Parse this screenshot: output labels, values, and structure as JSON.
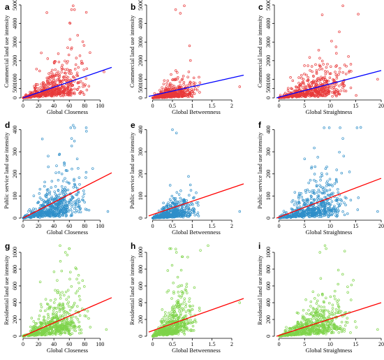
{
  "colors": {
    "commercial_points": "#e8393a",
    "public_points": "#2f8fc9",
    "residential_points": "#7ed34a",
    "fit_blue": "#0000ff",
    "fit_red": "#ff0000"
  },
  "chart_data": [
    {
      "type": "scatter",
      "panel": "a",
      "xlabel": "Global Closeness",
      "ylabel": "Commercial land use intensity",
      "xlim": [
        0,
        115
      ],
      "ylim": [
        0,
        5000
      ],
      "xticks": [
        0,
        20,
        40,
        60,
        80,
        100
      ],
      "yticks": [
        0,
        500,
        1000,
        2000,
        3000,
        4000,
        5000
      ],
      "fit": {
        "x": [
          0,
          115
        ],
        "y": [
          0,
          1640
        ]
      },
      "point_color": "commercial_points",
      "fit_color": "fit_blue",
      "points": {
        "seed": 11,
        "n": 520,
        "x_mean": 38,
        "x_sd": 20,
        "slope": 14.2,
        "noise": 0.9,
        "max_x": 110,
        "max_y": 5000,
        "outliers": [
          [
            65,
            4950
          ],
          [
            82,
            4600
          ],
          [
            105,
            1400
          ]
        ]
      }
    },
    {
      "type": "scatter",
      "panel": "b",
      "xlabel": "Global Betweenness",
      "ylabel": "Commercial land use intensity",
      "xlim": [
        -0.1,
        2.3
      ],
      "ylim": [
        0,
        5000
      ],
      "xticks": [
        0,
        0.5,
        1,
        1.5,
        2
      ],
      "yticks": [
        0,
        500,
        1000,
        2000,
        3000,
        4000,
        5000
      ],
      "fit": {
        "x": [
          -0.1,
          2.3
        ],
        "y": [
          80,
          1220
        ]
      },
      "point_color": "commercial_points",
      "fit_color": "fit_blue",
      "points": {
        "seed": 23,
        "n": 520,
        "x_mean": 0.45,
        "x_sd": 0.3,
        "slope": 500,
        "noise": 1.1,
        "max_x": 2.2,
        "max_y": 5000,
        "outliers": [
          [
            0.8,
            4950
          ],
          [
            0.7,
            4550
          ],
          [
            2.2,
            600
          ]
        ]
      }
    },
    {
      "type": "scatter",
      "panel": "c",
      "xlabel": "Global Straightness",
      "ylabel": "Commercial land use intensity",
      "xlim": [
        -0.5,
        20
      ],
      "ylim": [
        0,
        5000
      ],
      "xticks": [
        0,
        5,
        10,
        15,
        20
      ],
      "yticks": [
        0,
        500,
        1000,
        2000,
        3000,
        4000,
        5000
      ],
      "fit": {
        "x": [
          -0.5,
          20
        ],
        "y": [
          0,
          1470
        ]
      },
      "point_color": "commercial_points",
      "fit_color": "fit_blue",
      "points": {
        "seed": 37,
        "n": 520,
        "x_mean": 6.5,
        "x_sd": 3.5,
        "slope": 75,
        "noise": 0.9,
        "max_x": 19.5,
        "max_y": 5000,
        "outliers": [
          [
            12.5,
            4950
          ],
          [
            15.5,
            4500
          ],
          [
            19.3,
            1000
          ]
        ]
      }
    },
    {
      "type": "scatter",
      "panel": "d",
      "xlabel": "Global Closeness",
      "ylabel": "Public service land use intensity",
      "xlim": [
        0,
        115
      ],
      "ylim": [
        0,
        430
      ],
      "xticks": [
        0,
        20,
        40,
        60,
        80,
        100
      ],
      "yticks": [
        0,
        100,
        200,
        300,
        400
      ],
      "fit": {
        "x": [
          0,
          115
        ],
        "y": [
          0,
          205
        ]
      },
      "point_color": "public_points",
      "fit_color": "fit_red",
      "points": {
        "seed": 41,
        "n": 560,
        "x_mean": 38,
        "x_sd": 20,
        "slope": 1.4,
        "noise": 0.9,
        "max_x": 110,
        "max_y": 430,
        "outliers": [
          [
            65,
            420
          ],
          [
            63,
            360
          ],
          [
            110,
            30
          ]
        ]
      }
    },
    {
      "type": "scatter",
      "panel": "e",
      "xlabel": "Global Betweenness",
      "ylabel": "Public service land use intensity",
      "xlim": [
        -0.1,
        2.3
      ],
      "ylim": [
        0,
        430
      ],
      "xticks": [
        0,
        0.5,
        1,
        1.5,
        2
      ],
      "yticks": [
        0,
        100,
        200,
        300,
        400
      ],
      "fit": {
        "x": [
          -0.1,
          2.3
        ],
        "y": [
          10,
          155
        ]
      },
      "point_color": "public_points",
      "fit_color": "fit_red",
      "points": {
        "seed": 53,
        "n": 560,
        "x_mean": 0.45,
        "x_sd": 0.3,
        "slope": 55,
        "noise": 1.0,
        "max_x": 2.2,
        "max_y": 430,
        "outliers": [
          [
            0.5,
            400
          ],
          [
            0.6,
            385
          ],
          [
            2.2,
            30
          ]
        ]
      }
    },
    {
      "type": "scatter",
      "panel": "f",
      "xlabel": "Global Straightness",
      "ylabel": "Public service land use intensity",
      "xlim": [
        -0.5,
        20
      ],
      "ylim": [
        0,
        430
      ],
      "xticks": [
        0,
        5,
        10,
        15,
        20
      ],
      "yticks": [
        0,
        100,
        200,
        300,
        400
      ],
      "fit": {
        "x": [
          -0.5,
          20
        ],
        "y": [
          0,
          180
        ]
      },
      "point_color": "public_points",
      "fit_color": "fit_red",
      "points": {
        "seed": 67,
        "n": 560,
        "x_mean": 6.5,
        "x_sd": 3.5,
        "slope": 7.5,
        "noise": 0.9,
        "max_x": 19.5,
        "max_y": 430,
        "outliers": [
          [
            16,
            410
          ],
          [
            12.5,
            360
          ],
          [
            19.3,
            30
          ]
        ]
      }
    },
    {
      "type": "scatter",
      "panel": "g",
      "xlabel": "Global Closeness",
      "ylabel": "Residential land use intensity",
      "xlim": [
        0,
        115
      ],
      "ylim": [
        0,
        1100
      ],
      "xticks": [
        0,
        20,
        40,
        60,
        80,
        100
      ],
      "yticks": [
        0,
        200,
        400,
        600,
        800,
        1000
      ],
      "fit": {
        "x": [
          0,
          115
        ],
        "y": [
          0,
          460
        ]
      },
      "point_color": "residential_points",
      "fit_color": "fit_red",
      "points": {
        "seed": 71,
        "n": 580,
        "x_mean": 38,
        "x_sd": 20,
        "slope": 3.8,
        "noise": 0.85,
        "max_x": 110,
        "max_y": 1100,
        "outliers": [
          [
            48,
            1080
          ],
          [
            55,
            1000
          ],
          [
            108,
            80
          ]
        ]
      }
    },
    {
      "type": "scatter",
      "panel": "h",
      "xlabel": "Global Betweenness",
      "ylabel": "Residential land use intensity",
      "xlim": [
        -0.1,
        2.3
      ],
      "ylim": [
        0,
        1100
      ],
      "xticks": [
        0,
        0.5,
        1,
        1.5,
        2
      ],
      "yticks": [
        0,
        200,
        400,
        600,
        800,
        1000
      ],
      "fit": {
        "x": [
          -0.1,
          2.3
        ],
        "y": [
          50,
          450
        ]
      },
      "point_color": "residential_points",
      "fit_color": "fit_red",
      "points": {
        "seed": 83,
        "n": 580,
        "x_mean": 0.45,
        "x_sd": 0.3,
        "slope": 300,
        "noise": 0.9,
        "max_x": 2.2,
        "max_y": 1100,
        "outliers": [
          [
            1.4,
            1080
          ],
          [
            0.6,
            1000
          ],
          [
            2.2,
            400
          ]
        ]
      }
    },
    {
      "type": "scatter",
      "panel": "i",
      "xlabel": "Global Straightness",
      "ylabel": "Residential land use intensity",
      "xlim": [
        -0.5,
        20
      ],
      "ylim": [
        0,
        1100
      ],
      "xticks": [
        0,
        5,
        10,
        15,
        20
      ],
      "yticks": [
        0,
        200,
        400,
        600,
        800,
        1000
      ],
      "fit": {
        "x": [
          -0.5,
          20
        ],
        "y": [
          0,
          400
        ]
      },
      "point_color": "residential_points",
      "fit_color": "fit_red",
      "points": {
        "seed": 97,
        "n": 580,
        "x_mean": 6.5,
        "x_sd": 3.5,
        "slope": 20,
        "noise": 0.85,
        "max_x": 19.5,
        "max_y": 1100,
        "outliers": [
          [
            9,
            1080
          ],
          [
            8,
            1000
          ],
          [
            19.3,
            80
          ]
        ]
      }
    }
  ]
}
